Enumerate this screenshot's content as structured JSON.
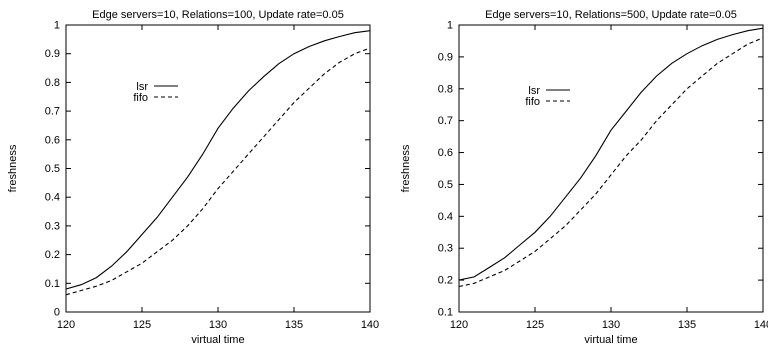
{
  "chart_data": [
    {
      "type": "line",
      "title": "Edge servers=10, Relations=100, Update rate=0.05",
      "xlabel": "virtual time",
      "ylabel": "freshness",
      "xlim": [
        120,
        140
      ],
      "ylim": [
        0,
        1
      ],
      "xticks": [
        120,
        125,
        130,
        135,
        140
      ],
      "yticks": [
        0,
        0.1,
        0.2,
        0.3,
        0.4,
        0.5,
        0.6,
        0.7,
        0.8,
        0.9,
        1
      ],
      "ytick_labels": [
        "0",
        "0.1",
        "0.2",
        "0.3",
        "0.4",
        "0.5",
        "0.6",
        "0.7",
        "0.8",
        "0.9",
        "1"
      ],
      "grid": false,
      "legend": "upper-left-inside",
      "series": [
        {
          "name": "lsr",
          "style": "solid",
          "x": [
            120,
            121,
            122,
            123,
            124,
            125,
            126,
            127,
            128,
            129,
            130,
            131,
            132,
            133,
            134,
            135,
            136,
            137,
            138,
            139,
            140
          ],
          "y": [
            0.08,
            0.095,
            0.12,
            0.16,
            0.21,
            0.27,
            0.33,
            0.4,
            0.47,
            0.55,
            0.64,
            0.71,
            0.77,
            0.82,
            0.865,
            0.9,
            0.925,
            0.945,
            0.96,
            0.973,
            0.98
          ]
        },
        {
          "name": "fifo",
          "style": "dashed",
          "x": [
            120,
            121,
            122,
            123,
            124,
            125,
            126,
            127,
            128,
            129,
            130,
            131,
            132,
            133,
            134,
            135,
            136,
            137,
            138,
            139,
            140
          ],
          "y": [
            0.06,
            0.075,
            0.09,
            0.11,
            0.14,
            0.17,
            0.21,
            0.25,
            0.3,
            0.36,
            0.43,
            0.49,
            0.55,
            0.61,
            0.67,
            0.73,
            0.78,
            0.83,
            0.87,
            0.9,
            0.92
          ]
        }
      ]
    },
    {
      "type": "line",
      "title": "Edge servers=10, Relations=500, Update rate=0.05",
      "xlabel": "virtual time",
      "ylabel": "freshness",
      "xlim": [
        120,
        140
      ],
      "ylim": [
        0.1,
        1
      ],
      "xticks": [
        120,
        125,
        130,
        135,
        140
      ],
      "yticks": [
        0.1,
        0.2,
        0.3,
        0.4,
        0.5,
        0.6,
        0.7,
        0.8,
        0.9,
        1
      ],
      "ytick_labels": [
        "0.1",
        "0.2",
        "0.3",
        "0.4",
        "0.5",
        "0.6",
        "0.7",
        "0.8",
        "0.9",
        "1"
      ],
      "grid": false,
      "legend": "upper-left-inside",
      "series": [
        {
          "name": "lsr",
          "style": "solid",
          "x": [
            120,
            121,
            122,
            123,
            124,
            125,
            126,
            127,
            128,
            129,
            130,
            131,
            132,
            133,
            134,
            135,
            136,
            137,
            138,
            139,
            140
          ],
          "y": [
            0.2,
            0.21,
            0.24,
            0.27,
            0.31,
            0.35,
            0.4,
            0.46,
            0.52,
            0.59,
            0.67,
            0.73,
            0.79,
            0.84,
            0.88,
            0.91,
            0.935,
            0.955,
            0.97,
            0.982,
            0.99
          ]
        },
        {
          "name": "fifo",
          "style": "dashed",
          "x": [
            120,
            121,
            122,
            123,
            124,
            125,
            126,
            127,
            128,
            129,
            130,
            131,
            132,
            133,
            134,
            135,
            136,
            137,
            138,
            139,
            140
          ],
          "y": [
            0.18,
            0.19,
            0.21,
            0.23,
            0.26,
            0.29,
            0.33,
            0.37,
            0.42,
            0.47,
            0.53,
            0.59,
            0.64,
            0.7,
            0.75,
            0.8,
            0.84,
            0.88,
            0.91,
            0.94,
            0.96
          ]
        }
      ]
    }
  ]
}
